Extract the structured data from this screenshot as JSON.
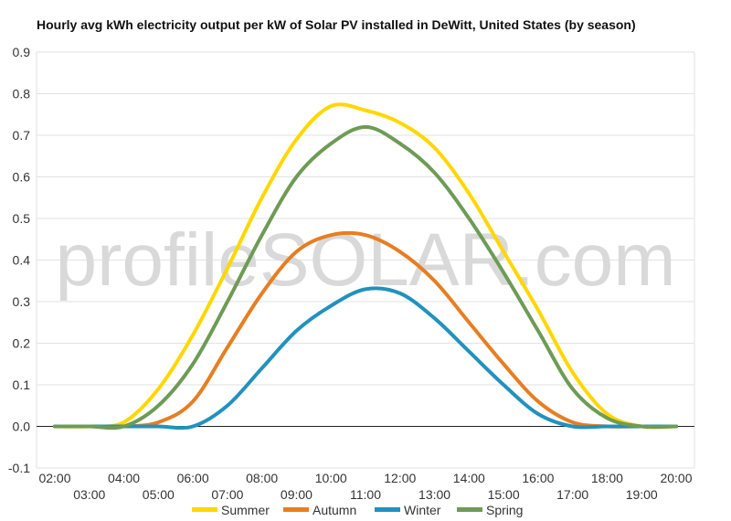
{
  "chart_data": {
    "type": "line",
    "title": "Hourly avg kWh electricity output per kW of Solar PV installed in DeWitt, United States (by season)",
    "xlabel": "",
    "ylabel": "",
    "x": [
      "02:00",
      "03:00",
      "04:00",
      "05:00",
      "06:00",
      "07:00",
      "08:00",
      "09:00",
      "10:00",
      "11:00",
      "12:00",
      "13:00",
      "14:00",
      "15:00",
      "16:00",
      "17:00",
      "18:00",
      "19:00",
      "20:00"
    ],
    "ylim": [
      -0.1,
      0.9
    ],
    "yticks": [
      "0.9",
      "0.8",
      "0.7",
      "0.6",
      "0.5",
      "0.4",
      "0.3",
      "0.2",
      "0.1",
      "0.0",
      "-0.1"
    ],
    "grid": true,
    "legend": "bottom",
    "series": [
      {
        "name": "Summer",
        "color": "#FFD700",
        "values": [
          0,
          0,
          0.01,
          0.09,
          0.22,
          0.38,
          0.55,
          0.69,
          0.77,
          0.76,
          0.73,
          0.67,
          0.56,
          0.42,
          0.28,
          0.13,
          0.03,
          0.0,
          0
        ]
      },
      {
        "name": "Autumn",
        "color": "#E67E22",
        "values": [
          0,
          0,
          0,
          0.01,
          0.06,
          0.19,
          0.32,
          0.42,
          0.46,
          0.46,
          0.42,
          0.35,
          0.25,
          0.15,
          0.06,
          0.01,
          0,
          0,
          0
        ]
      },
      {
        "name": "Winter",
        "color": "#2291BE",
        "values": [
          0,
          0,
          0,
          0,
          0,
          0.05,
          0.14,
          0.23,
          0.29,
          0.33,
          0.32,
          0.26,
          0.18,
          0.1,
          0.03,
          0,
          0,
          0,
          0
        ]
      },
      {
        "name": "Spring",
        "color": "#6E9B55",
        "values": [
          0,
          0,
          0,
          0.05,
          0.15,
          0.3,
          0.46,
          0.6,
          0.68,
          0.72,
          0.68,
          0.61,
          0.5,
          0.37,
          0.23,
          0.09,
          0.02,
          0,
          0
        ]
      }
    ]
  },
  "watermark": "profileSOLAR.com"
}
